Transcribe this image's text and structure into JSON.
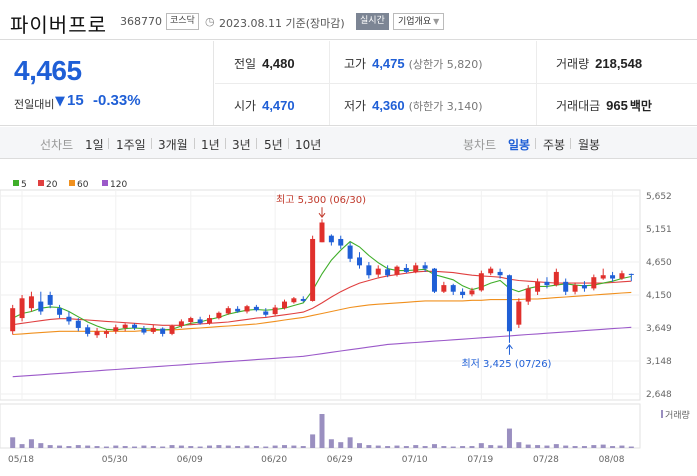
{
  "header": {
    "name": "파이버프로",
    "code": "368770",
    "market": "코스닥",
    "date_text": "2023.08.11 기준(장마감)",
    "live_label": "실시간",
    "corp_button": "기업개요"
  },
  "quote": {
    "price": "4,465",
    "change_label": "전일대비",
    "change_arrow": "▼",
    "change_value": "15",
    "change_pct": "-0.33%",
    "prev_label": "전일",
    "prev_value": "4,480",
    "high_label": "고가",
    "high_value": "4,475",
    "upper_text": "(상한가 5,820)",
    "volume_label": "거래량",
    "volume_value": "218,548",
    "open_label": "시가",
    "open_value": "4,470",
    "low_label": "저가",
    "low_value": "4,360",
    "lower_text": "(하한가 3,140)",
    "amount_label": "거래대금",
    "amount_value": "965",
    "amount_unit": "백만"
  },
  "period_tabs": {
    "title": "선차트",
    "items": [
      "1일",
      "1주일",
      "3개월",
      "1년",
      "3년",
      "5년",
      "10년"
    ]
  },
  "candle_tabs": {
    "title": "봉차트",
    "items": [
      "일봉",
      "주봉",
      "월봉"
    ],
    "active": "일봉"
  },
  "legend": [
    {
      "label": "5",
      "color": "#3fae29"
    },
    {
      "label": "20",
      "color": "#e04040"
    },
    {
      "label": "60",
      "color": "#f0901e"
    },
    {
      "label": "120",
      "color": "#9b59c9"
    }
  ],
  "colors": {
    "up": "#e0302c",
    "down": "#1f5fd6",
    "volume": "#9a8fc0",
    "accent": "#1f5fd6"
  },
  "chart_data": {
    "type": "candlestick",
    "y_ticks": [
      "5,652",
      "5,151",
      "4,650",
      "4,150",
      "3,649",
      "3,148",
      "2,648"
    ],
    "ylim": [
      2648,
      5652
    ],
    "x_ticks": [
      "05/18",
      "05/30",
      "06/09",
      "06/20",
      "06/29",
      "07/10",
      "07/19",
      "07/28",
      "08/08"
    ],
    "max_label": "최고 5,300 (06/30)",
    "min_label": "최저 3,425 (07/26)",
    "volume_label": "거래량",
    "candles": [
      {
        "o": 3600,
        "c": 3950,
        "h": 4000,
        "l": 3550
      },
      {
        "o": 3800,
        "c": 4100,
        "h": 4150,
        "l": 3750
      },
      {
        "o": 3950,
        "c": 4130,
        "h": 4200,
        "l": 3900
      },
      {
        "o": 4050,
        "c": 3900,
        "h": 4200,
        "l": 3850
      },
      {
        "o": 4150,
        "c": 4000,
        "h": 4200,
        "l": 3950
      },
      {
        "o": 3950,
        "c": 3850,
        "h": 4000,
        "l": 3800
      },
      {
        "o": 3820,
        "c": 3750,
        "h": 3900,
        "l": 3700
      },
      {
        "o": 3760,
        "c": 3650,
        "h": 3800,
        "l": 3600
      },
      {
        "o": 3660,
        "c": 3560,
        "h": 3700,
        "l": 3520
      },
      {
        "o": 3540,
        "c": 3600,
        "h": 3650,
        "l": 3500
      },
      {
        "o": 3560,
        "c": 3600,
        "h": 3620,
        "l": 3500
      },
      {
        "o": 3600,
        "c": 3660,
        "h": 3700,
        "l": 3560
      },
      {
        "o": 3650,
        "c": 3700,
        "h": 3720,
        "l": 3600
      },
      {
        "o": 3700,
        "c": 3650,
        "h": 3720,
        "l": 3620
      },
      {
        "o": 3640,
        "c": 3580,
        "h": 3680,
        "l": 3550
      },
      {
        "o": 3590,
        "c": 3650,
        "h": 3700,
        "l": 3560
      },
      {
        "o": 3640,
        "c": 3560,
        "h": 3660,
        "l": 3520
      },
      {
        "o": 3560,
        "c": 3680,
        "h": 3700,
        "l": 3540
      },
      {
        "o": 3680,
        "c": 3750,
        "h": 3780,
        "l": 3650
      },
      {
        "o": 3740,
        "c": 3800,
        "h": 3820,
        "l": 3700
      },
      {
        "o": 3780,
        "c": 3720,
        "h": 3820,
        "l": 3700
      },
      {
        "o": 3720,
        "c": 3800,
        "h": 3850,
        "l": 3700
      },
      {
        "o": 3800,
        "c": 3880,
        "h": 3900,
        "l": 3780
      },
      {
        "o": 3870,
        "c": 3950,
        "h": 3980,
        "l": 3850
      },
      {
        "o": 3940,
        "c": 3900,
        "h": 3980,
        "l": 3880
      },
      {
        "o": 3900,
        "c": 3980,
        "h": 4000,
        "l": 3870
      },
      {
        "o": 3970,
        "c": 3920,
        "h": 4000,
        "l": 3900
      },
      {
        "o": 3900,
        "c": 3850,
        "h": 3950,
        "l": 3820
      },
      {
        "o": 3860,
        "c": 3960,
        "h": 4000,
        "l": 3840
      },
      {
        "o": 3950,
        "c": 4050,
        "h": 4080,
        "l": 3930
      },
      {
        "o": 4040,
        "c": 4100,
        "h": 4120,
        "l": 4020
      },
      {
        "o": 4090,
        "c": 4060,
        "h": 4130,
        "l": 4040
      },
      {
        "o": 4060,
        "c": 5000,
        "h": 5050,
        "l": 4050
      },
      {
        "o": 4950,
        "c": 5250,
        "h": 5300,
        "l": 4950
      },
      {
        "o": 5050,
        "c": 4950,
        "h": 5070,
        "l": 4900
      },
      {
        "o": 5000,
        "c": 4900,
        "h": 5050,
        "l": 4850
      },
      {
        "o": 4900,
        "c": 4700,
        "h": 4950,
        "l": 4650
      },
      {
        "o": 4720,
        "c": 4600,
        "h": 4800,
        "l": 4550
      },
      {
        "o": 4600,
        "c": 4450,
        "h": 4650,
        "l": 4400
      },
      {
        "o": 4460,
        "c": 4550,
        "h": 4600,
        "l": 4420
      },
      {
        "o": 4540,
        "c": 4450,
        "h": 4600,
        "l": 4420
      },
      {
        "o": 4460,
        "c": 4580,
        "h": 4600,
        "l": 4430
      },
      {
        "o": 4560,
        "c": 4500,
        "h": 4620,
        "l": 4480
      },
      {
        "o": 4500,
        "c": 4600,
        "h": 4640,
        "l": 4480
      },
      {
        "o": 4600,
        "c": 4550,
        "h": 4650,
        "l": 4500
      },
      {
        "o": 4550,
        "c": 4200,
        "h": 4560,
        "l": 4180
      },
      {
        "o": 4200,
        "c": 4300,
        "h": 4350,
        "l": 4180
      },
      {
        "o": 4300,
        "c": 4200,
        "h": 4320,
        "l": 4150
      },
      {
        "o": 4200,
        "c": 4150,
        "h": 4250,
        "l": 4100
      },
      {
        "o": 4160,
        "c": 4220,
        "h": 4260,
        "l": 4130
      },
      {
        "o": 4220,
        "c": 4480,
        "h": 4520,
        "l": 4200
      },
      {
        "o": 4480,
        "c": 4550,
        "h": 4580,
        "l": 4450
      },
      {
        "o": 4500,
        "c": 4450,
        "h": 4550,
        "l": 4400
      },
      {
        "o": 4450,
        "c": 3600,
        "h": 4460,
        "l": 3425
      },
      {
        "o": 3700,
        "c": 4050,
        "h": 4100,
        "l": 3650
      },
      {
        "o": 4050,
        "c": 4250,
        "h": 4300,
        "l": 4000
      },
      {
        "o": 4200,
        "c": 4350,
        "h": 4400,
        "l": 4150
      },
      {
        "o": 4350,
        "c": 4300,
        "h": 4420,
        "l": 4250
      },
      {
        "o": 4300,
        "c": 4500,
        "h": 4550,
        "l": 4280
      },
      {
        "o": 4350,
        "c": 4200,
        "h": 4400,
        "l": 4150
      },
      {
        "o": 4200,
        "c": 4300,
        "h": 4340,
        "l": 4160
      },
      {
        "o": 4300,
        "c": 4250,
        "h": 4360,
        "l": 4200
      },
      {
        "o": 4250,
        "c": 4420,
        "h": 4460,
        "l": 4220
      },
      {
        "o": 4400,
        "c": 4450,
        "h": 4550,
        "l": 4380
      },
      {
        "o": 4450,
        "c": 4400,
        "h": 4500,
        "l": 4350
      },
      {
        "o": 4400,
        "c": 4480,
        "h": 4520,
        "l": 4380
      },
      {
        "o": 4470,
        "c": 4465,
        "h": 4475,
        "l": 4360
      }
    ],
    "volumes": [
      22,
      8,
      18,
      10,
      6,
      5,
      4,
      6,
      5,
      4,
      3,
      5,
      4,
      3,
      5,
      4,
      3,
      6,
      5,
      4,
      3,
      5,
      6,
      5,
      4,
      5,
      4,
      3,
      5,
      6,
      5,
      4,
      28,
      70,
      18,
      12,
      22,
      10,
      6,
      5,
      4,
      5,
      4,
      6,
      4,
      8,
      4,
      3,
      4,
      4,
      10,
      6,
      5,
      40,
      12,
      7,
      6,
      5,
      8,
      5,
      4,
      4,
      6,
      7,
      4,
      5,
      3
    ],
    "ma5": [
      3800,
      3870,
      3900,
      3950,
      3970,
      3960,
      3900,
      3820,
      3740,
      3680,
      3630,
      3620,
      3640,
      3650,
      3640,
      3630,
      3620,
      3630,
      3680,
      3720,
      3740,
      3780,
      3810,
      3860,
      3890,
      3920,
      3930,
      3920,
      3930,
      3950,
      3990,
      4030,
      4220,
      4470,
      4680,
      4830,
      4960,
      4880,
      4750,
      4640,
      4550,
      4520,
      4520,
      4530,
      4540,
      4460,
      4420,
      4380,
      4290,
      4230,
      4270,
      4330,
      4370,
      4250,
      4200,
      4250,
      4280,
      4280,
      4300,
      4320,
      4300,
      4290,
      4300,
      4330,
      4360,
      4400,
      4430
    ],
    "ma20": [
      3700,
      3720,
      3740,
      3760,
      3780,
      3790,
      3790,
      3780,
      3770,
      3760,
      3750,
      3740,
      3730,
      3720,
      3710,
      3700,
      3690,
      3690,
      3690,
      3700,
      3710,
      3720,
      3730,
      3740,
      3760,
      3780,
      3800,
      3810,
      3830,
      3850,
      3870,
      3890,
      3950,
      4030,
      4120,
      4200,
      4270,
      4330,
      4370,
      4410,
      4440,
      4460,
      4480,
      4500,
      4510,
      4510,
      4500,
      4490,
      4470,
      4450,
      4440,
      4430,
      4420,
      4390,
      4370,
      4360,
      4350,
      4340,
      4330,
      4330,
      4330,
      4330,
      4330,
      4330,
      4340,
      4350,
      4360
    ],
    "ma60": [
      3550,
      3560,
      3570,
      3580,
      3590,
      3600,
      3600,
      3600,
      3600,
      3600,
      3600,
      3600,
      3600,
      3600,
      3610,
      3610,
      3620,
      3620,
      3630,
      3640,
      3650,
      3660,
      3670,
      3680,
      3690,
      3700,
      3710,
      3730,
      3750,
      3770,
      3790,
      3810,
      3840,
      3870,
      3900,
      3930,
      3960,
      3980,
      4000,
      4010,
      4020,
      4030,
      4040,
      4050,
      4060,
      4060,
      4060,
      4060,
      4060,
      4070,
      4070,
      4080,
      4080,
      4080,
      4080,
      4090,
      4090,
      4100,
      4110,
      4120,
      4130,
      4140,
      4150,
      4160,
      4170,
      4180,
      4190
    ],
    "ma120": [
      2910,
      2920,
      2930,
      2940,
      2950,
      2960,
      2970,
      2980,
      2990,
      3000,
      3010,
      3020,
      3030,
      3040,
      3050,
      3060,
      3070,
      3080,
      3090,
      3100,
      3110,
      3120,
      3130,
      3140,
      3150,
      3160,
      3170,
      3180,
      3190,
      3200,
      3210,
      3220,
      3240,
      3260,
      3280,
      3300,
      3320,
      3340,
      3360,
      3380,
      3400,
      3410,
      3420,
      3430,
      3440,
      3450,
      3460,
      3470,
      3480,
      3490,
      3500,
      3510,
      3520,
      3530,
      3540,
      3550,
      3560,
      3570,
      3580,
      3590,
      3600,
      3610,
      3620,
      3630,
      3640,
      3650,
      3660
    ]
  }
}
